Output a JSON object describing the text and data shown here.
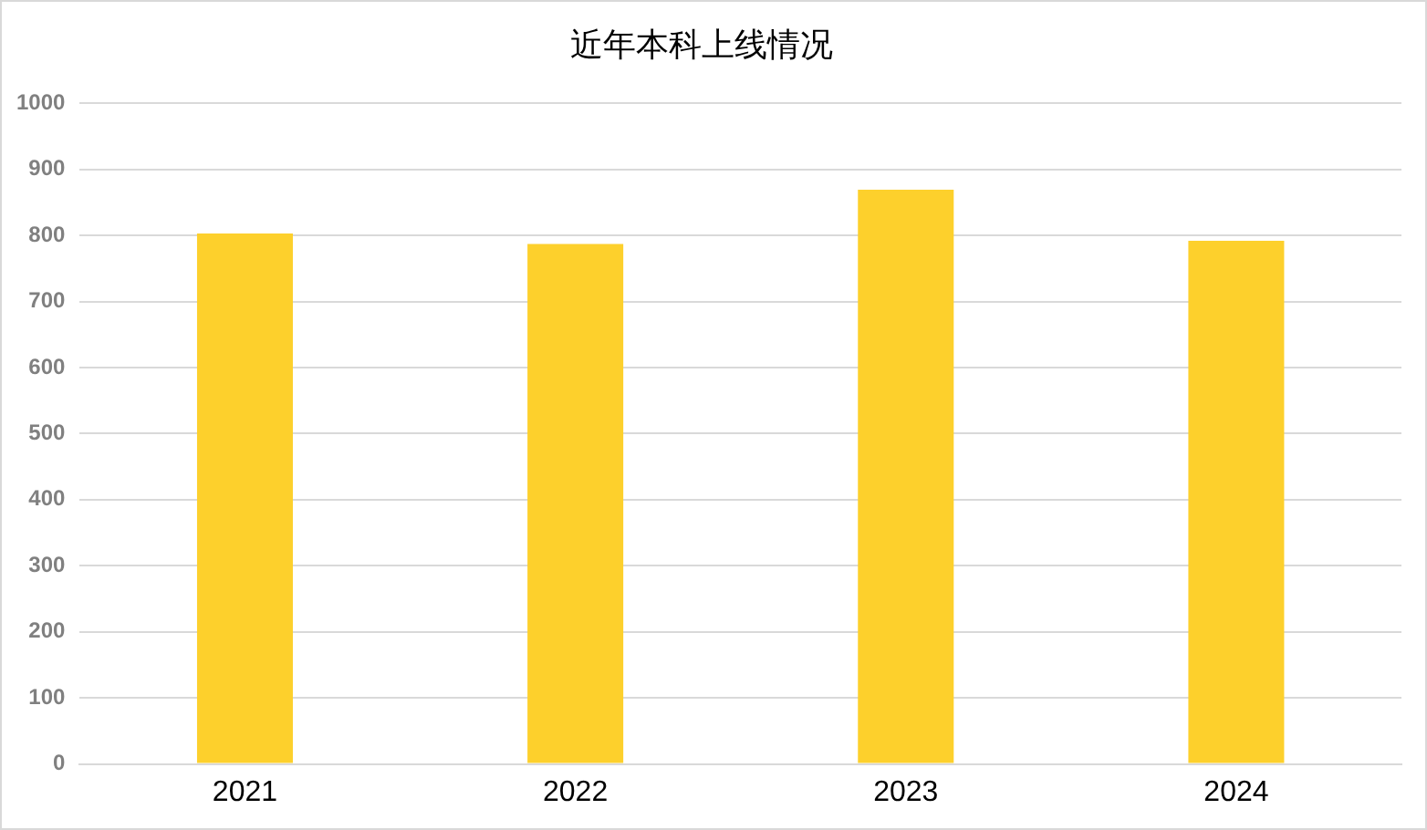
{
  "chart_data": {
    "type": "bar",
    "title": "近年本科上线情况",
    "categories": [
      "2021",
      "2022",
      "2023",
      "2024"
    ],
    "values": [
      803,
      787,
      869,
      792
    ],
    "color": "#fdd02c",
    "ylim": [
      0,
      1000
    ],
    "yticks": [
      0,
      100,
      200,
      300,
      400,
      500,
      600,
      700,
      800,
      900,
      1000
    ],
    "grid": "y",
    "legend": false
  }
}
